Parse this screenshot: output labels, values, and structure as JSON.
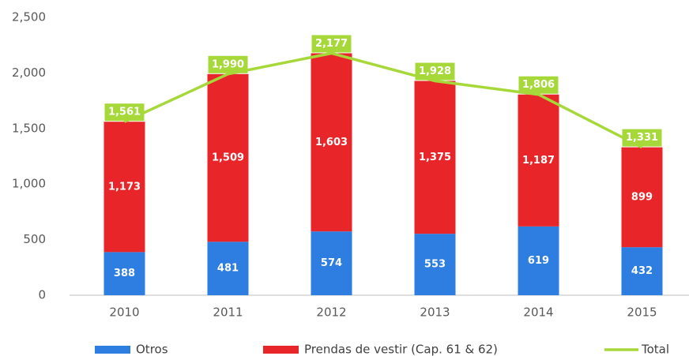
{
  "chart_data": {
    "type": "stacked_bar_line",
    "categories": [
      "2010",
      "2011",
      "2012",
      "2013",
      "2014",
      "2015"
    ],
    "series": [
      {
        "name": "Otros",
        "color": "#2e7de1",
        "values": [
          388,
          481,
          574,
          553,
          619,
          432
        ]
      },
      {
        "name": "Prendas de vestir (Cap. 61 & 62)",
        "color": "#e8262a",
        "values": [
          1173,
          1509,
          1603,
          1375,
          1187,
          899
        ],
        "value_labels": [
          "1,173",
          "1,509",
          "1,603",
          "1,375",
          "1,187",
          "899"
        ]
      },
      {
        "name": "Total",
        "color": "#a6d83a",
        "type": "line",
        "values": [
          1561,
          1990,
          2177,
          1928,
          1806,
          1331
        ],
        "value_labels": [
          "1,561",
          "1,990",
          "2,177",
          "1,928",
          "1,806",
          "1,331"
        ]
      }
    ],
    "ylim": [
      0,
      2500
    ],
    "yticks": [
      0,
      500,
      {
        "value": 1000,
        "label": "1,000"
      },
      {
        "value": 1500,
        "label": "1,500"
      },
      {
        "value": 2000,
        "label": "2,000"
      },
      {
        "value": 2500,
        "label": "2,500"
      }
    ],
    "grid": false,
    "legend": "bottom"
  }
}
